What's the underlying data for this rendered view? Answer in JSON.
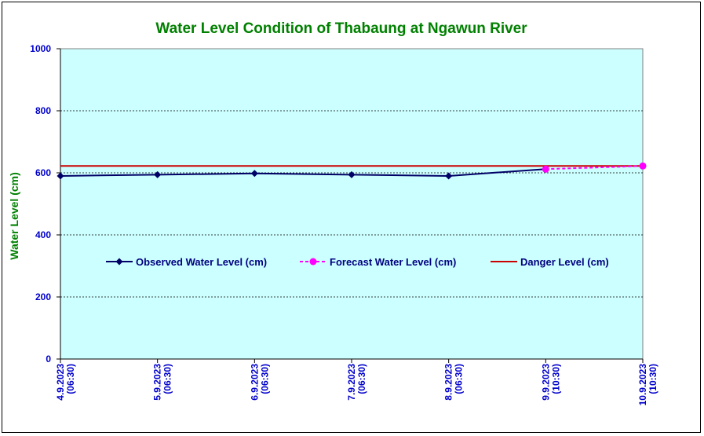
{
  "chart_data": {
    "type": "line",
    "title": "Water Level Condition of  Thabaung at Ngawun River",
    "ylabel": "Water Level (cm)",
    "xlabel": "",
    "ylim": [
      0,
      1000
    ],
    "yticks": [
      0,
      200,
      400,
      600,
      800,
      1000
    ],
    "grid": true,
    "legend_position": "center",
    "colors": {
      "plot_background": "#CCFFFF",
      "observed": "#000066",
      "forecast": "#FF00FF",
      "danger": "#CC0000",
      "axis_text": "#0000CC",
      "title": "#008000"
    },
    "categories": [
      {
        "date": "4.9.2023",
        "time": "(06:30)"
      },
      {
        "date": "5.9.2023",
        "time": "(06:30)"
      },
      {
        "date": "6.9.2023",
        "time": "(06:30)"
      },
      {
        "date": "7.9.2023",
        "time": "(06:30)"
      },
      {
        "date": "8.9.2023",
        "time": "(06:30)"
      },
      {
        "date": "9.9.2023",
        "time": "(10:30)"
      },
      {
        "date": "10.9.2023",
        "time": "(10:30)"
      }
    ],
    "series": [
      {
        "name": "Observed Water Level (cm)",
        "style": "solid-diamond",
        "values": [
          590,
          594,
          598,
          594,
          590,
          612,
          null
        ]
      },
      {
        "name": "Forecast Water Level (cm)",
        "style": "dashed-circle",
        "values": [
          null,
          null,
          null,
          null,
          null,
          612,
          622
        ]
      },
      {
        "name": "Danger Level (cm)",
        "style": "solid",
        "values": [
          622,
          622,
          622,
          622,
          622,
          622,
          622
        ]
      }
    ]
  }
}
